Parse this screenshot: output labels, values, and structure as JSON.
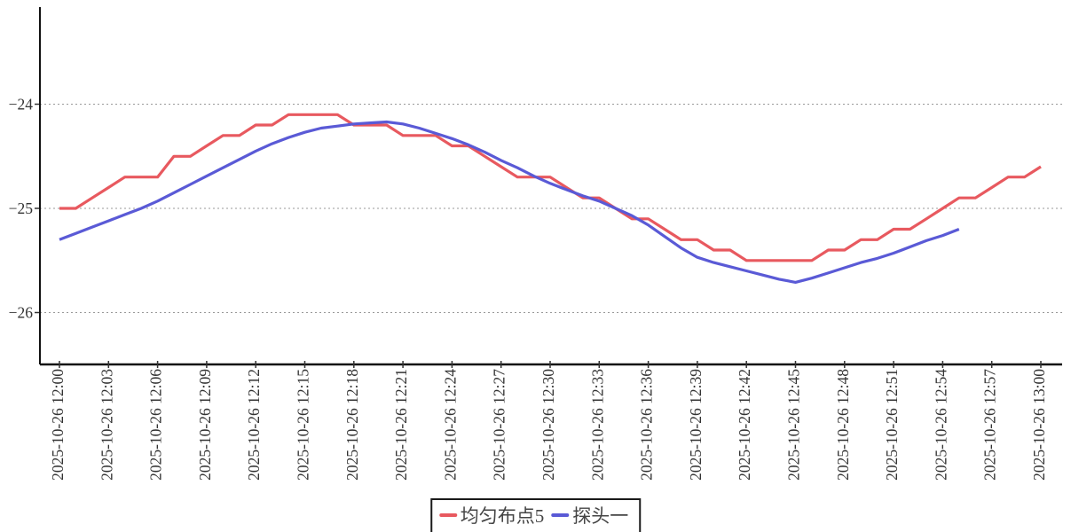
{
  "chart_data": {
    "type": "line",
    "title": "",
    "xlabel": "",
    "ylabel": "",
    "grid": "horizontal-dotted",
    "legend_position": "bottom-center",
    "x_axis": {
      "tick_labels": [
        "2025-10-26 12:00",
        "2025-10-26 12:03",
        "2025-10-26 12:06",
        "2025-10-26 12:09",
        "2025-10-26 12:12",
        "2025-10-26 12:15",
        "2025-10-26 12:18",
        "2025-10-26 12:21",
        "2025-10-26 12:24",
        "2025-10-26 12:27",
        "2025-10-26 12:30",
        "2025-10-26 12:33",
        "2025-10-26 12:36",
        "2025-10-26 12:39",
        "2025-10-26 12:42",
        "2025-10-26 12:45",
        "2025-10-26 12:48",
        "2025-10-26 12:51",
        "2025-10-26 12:54",
        "2025-10-26 12:57",
        "2025-10-26 13:00"
      ],
      "tick_minutes": [
        0,
        3,
        6,
        9,
        12,
        15,
        18,
        21,
        24,
        27,
        30,
        33,
        36,
        39,
        42,
        45,
        48,
        51,
        54,
        57,
        60
      ],
      "label_rotation_deg": -90
    },
    "y_axis": {
      "tick_labels": [
        "−24",
        "−25",
        "−26"
      ],
      "tick_values": [
        -24,
        -25,
        -26
      ],
      "ylim": [
        -26.5,
        -23.07
      ]
    },
    "series": [
      {
        "name": "均匀布点5",
        "color": "#e8595f",
        "start_minute": 0,
        "step_minutes": 1,
        "values": [
          -25.0,
          -25.0,
          -24.9,
          -24.8,
          -24.7,
          -24.7,
          -24.7,
          -24.5,
          -24.5,
          -24.4,
          -24.3,
          -24.3,
          -24.2,
          -24.2,
          -24.1,
          -24.1,
          -24.1,
          -24.1,
          -24.2,
          -24.2,
          -24.2,
          -24.3,
          -24.3,
          -24.3,
          -24.4,
          -24.4,
          -24.5,
          -24.6,
          -24.7,
          -24.7,
          -24.7,
          -24.8,
          -24.9,
          -24.9,
          -25.0,
          -25.1,
          -25.1,
          -25.2,
          -25.3,
          -25.3,
          -25.4,
          -25.4,
          -25.5,
          -25.5,
          -25.5,
          -25.5,
          -25.5,
          -25.4,
          -25.4,
          -25.3,
          -25.3,
          -25.2,
          -25.2,
          -25.1,
          -25.0,
          -24.9,
          -24.9,
          -24.8,
          -24.7,
          -24.7,
          -24.6
        ]
      },
      {
        "name": "探头一",
        "color": "#5a5ad6",
        "start_minute": 0,
        "step_minutes": 1,
        "values": [
          -25.3,
          -25.24,
          -25.18,
          -25.12,
          -25.06,
          -25.0,
          -24.93,
          -24.85,
          -24.77,
          -24.69,
          -24.61,
          -24.53,
          -24.45,
          -24.38,
          -24.32,
          -24.27,
          -24.23,
          -24.21,
          -24.19,
          -24.18,
          -24.17,
          -24.19,
          -24.23,
          -24.28,
          -24.33,
          -24.39,
          -24.46,
          -24.54,
          -24.61,
          -24.69,
          -24.76,
          -24.82,
          -24.88,
          -24.93,
          -25.0,
          -25.07,
          -25.16,
          -25.27,
          -25.38,
          -25.47,
          -25.52,
          -25.56,
          -25.6,
          -25.64,
          -25.68,
          -25.71,
          -25.67,
          -25.62,
          -25.57,
          -25.52,
          -25.48,
          -25.43,
          -25.37,
          -25.31,
          -25.26,
          -25.2
        ]
      }
    ]
  }
}
